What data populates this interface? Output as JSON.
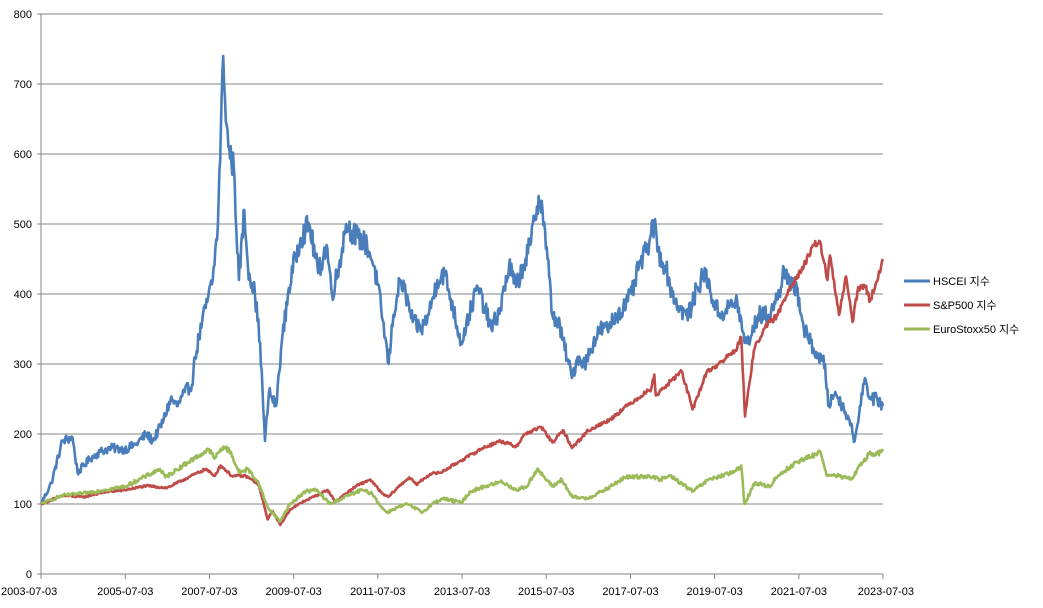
{
  "chart_data": {
    "type": "line",
    "title": "",
    "xlabel": "",
    "ylabel": "",
    "ylim": [
      0,
      800
    ],
    "yticks": [
      0,
      100,
      200,
      300,
      400,
      500,
      600,
      700,
      800
    ],
    "xlim": [
      "2003-07-03",
      "2023-07-03"
    ],
    "xticks": [
      "2003-07-03",
      "2005-07-03",
      "2007-07-03",
      "2009-07-03",
      "2011-07-03",
      "2013-07-03",
      "2015-07-03",
      "2017-07-03",
      "2019-07-03",
      "2021-07-03",
      "2023-07-03"
    ],
    "grid": "horizontal",
    "legend_position": "right",
    "series": [
      {
        "name": "HSCEI 지수",
        "color": "#4a7ebb",
        "points": [
          [
            "2003-07-03",
            100
          ],
          [
            "2003-10-01",
            130
          ],
          [
            "2004-01-05",
            190
          ],
          [
            "2004-04-01",
            195
          ],
          [
            "2004-05-15",
            145
          ],
          [
            "2004-09-01",
            165
          ],
          [
            "2004-12-01",
            175
          ],
          [
            "2005-03-01",
            180
          ],
          [
            "2005-07-01",
            178
          ],
          [
            "2005-10-01",
            185
          ],
          [
            "2006-01-01",
            200
          ],
          [
            "2006-03-01",
            190
          ],
          [
            "2006-06-01",
            220
          ],
          [
            "2006-08-01",
            250
          ],
          [
            "2006-10-01",
            240
          ],
          [
            "2006-12-01",
            260
          ],
          [
            "2007-02-01",
            270
          ],
          [
            "2007-03-01",
            310
          ],
          [
            "2007-05-01",
            360
          ],
          [
            "2007-06-01",
            380
          ],
          [
            "2007-08-01",
            420
          ],
          [
            "2007-09-15",
            500
          ],
          [
            "2007-10-31",
            740
          ],
          [
            "2007-11-15",
            680
          ],
          [
            "2007-12-15",
            610
          ],
          [
            "2008-01-31",
            580
          ],
          [
            "2008-03-15",
            420
          ],
          [
            "2008-05-01",
            520
          ],
          [
            "2008-06-01",
            440
          ],
          [
            "2008-08-01",
            400
          ],
          [
            "2008-09-15",
            330
          ],
          [
            "2008-10-27",
            190
          ],
          [
            "2008-12-01",
            260
          ],
          [
            "2009-02-01",
            240
          ],
          [
            "2009-03-15",
            320
          ],
          [
            "2009-05-15",
            400
          ],
          [
            "2009-07-15",
            450
          ],
          [
            "2009-09-01",
            480
          ],
          [
            "2009-11-15",
            500
          ],
          [
            "2010-02-01",
            430
          ],
          [
            "2010-04-15",
            470
          ],
          [
            "2010-06-01",
            400
          ],
          [
            "2010-08-01",
            440
          ],
          [
            "2010-10-01",
            500
          ],
          [
            "2010-11-15",
            490
          ],
          [
            "2011-01-15",
            480
          ],
          [
            "2011-04-01",
            470
          ],
          [
            "2011-06-01",
            440
          ],
          [
            "2011-08-01",
            380
          ],
          [
            "2011-10-05",
            300
          ],
          [
            "2011-11-15",
            370
          ],
          [
            "2012-01-15",
            420
          ],
          [
            "2012-03-01",
            400
          ],
          [
            "2012-05-01",
            360
          ],
          [
            "2012-07-15",
            350
          ],
          [
            "2012-09-15",
            370
          ],
          [
            "2012-12-01",
            420
          ],
          [
            "2013-02-01",
            430
          ],
          [
            "2013-04-15",
            380
          ],
          [
            "2013-06-25",
            330
          ],
          [
            "2013-09-01",
            370
          ],
          [
            "2013-11-15",
            410
          ],
          [
            "2014-01-15",
            380
          ],
          [
            "2014-03-15",
            350
          ],
          [
            "2014-06-01",
            380
          ],
          [
            "2014-08-15",
            440
          ],
          [
            "2014-10-15",
            410
          ],
          [
            "2014-12-15",
            440
          ],
          [
            "2015-02-15",
            470
          ],
          [
            "2015-04-28",
            540
          ],
          [
            "2015-06-01",
            520
          ],
          [
            "2015-07-15",
            450
          ],
          [
            "2015-08-25",
            370
          ],
          [
            "2015-10-15",
            360
          ],
          [
            "2016-01-15",
            300
          ],
          [
            "2016-02-12",
            280
          ],
          [
            "2016-04-01",
            310
          ],
          [
            "2016-06-01",
            300
          ],
          [
            "2016-08-15",
            330
          ],
          [
            "2016-10-15",
            350
          ],
          [
            "2016-12-15",
            350
          ],
          [
            "2017-03-01",
            370
          ],
          [
            "2017-05-01",
            380
          ],
          [
            "2017-07-15",
            400
          ],
          [
            "2017-09-15",
            440
          ],
          [
            "2017-11-15",
            460
          ],
          [
            "2018-01-26",
            500
          ],
          [
            "2018-03-01",
            460
          ],
          [
            "2018-05-01",
            440
          ],
          [
            "2018-07-01",
            400
          ],
          [
            "2018-09-01",
            380
          ],
          [
            "2018-10-30",
            370
          ],
          [
            "2018-12-15",
            380
          ],
          [
            "2019-02-01",
            410
          ],
          [
            "2019-04-15",
            430
          ],
          [
            "2019-06-01",
            400
          ],
          [
            "2019-08-15",
            370
          ],
          [
            "2019-11-01",
            380
          ],
          [
            "2020-01-15",
            390
          ],
          [
            "2020-03-19",
            330
          ],
          [
            "2020-05-15",
            340
          ],
          [
            "2020-07-15",
            370
          ],
          [
            "2020-10-15",
            370
          ],
          [
            "2021-01-15",
            400
          ],
          [
            "2021-02-17",
            440
          ],
          [
            "2021-04-15",
            410
          ],
          [
            "2021-06-15",
            410
          ],
          [
            "2021-08-15",
            350
          ],
          [
            "2021-10-15",
            330
          ],
          [
            "2021-12-15",
            310
          ],
          [
            "2022-02-15",
            300
          ],
          [
            "2022-03-15",
            240
          ],
          [
            "2022-05-15",
            260
          ],
          [
            "2022-07-15",
            240
          ],
          [
            "2022-09-15",
            220
          ],
          [
            "2022-10-31",
            190
          ],
          [
            "2022-12-15",
            240
          ],
          [
            "2023-01-27",
            280
          ],
          [
            "2023-03-15",
            250
          ],
          [
            "2023-05-15",
            250
          ],
          [
            "2023-07-03",
            240
          ]
        ]
      },
      {
        "name": "S&P500 지수",
        "color": "#be4b48",
        "points": [
          [
            "2003-07-03",
            100
          ],
          [
            "2004-01-01",
            112
          ],
          [
            "2004-07-01",
            110
          ],
          [
            "2005-01-01",
            117
          ],
          [
            "2005-07-01",
            120
          ],
          [
            "2006-01-01",
            126
          ],
          [
            "2006-07-01",
            123
          ],
          [
            "2007-01-01",
            138
          ],
          [
            "2007-06-01",
            150
          ],
          [
            "2007-08-15",
            140
          ],
          [
            "2007-10-09",
            155
          ],
          [
            "2008-01-15",
            140
          ],
          [
            "2008-05-15",
            140
          ],
          [
            "2008-09-01",
            128
          ],
          [
            "2008-11-20",
            78
          ],
          [
            "2009-01-01",
            90
          ],
          [
            "2009-03-09",
            70
          ],
          [
            "2009-06-01",
            92
          ],
          [
            "2009-10-01",
            104
          ],
          [
            "2010-01-01",
            111
          ],
          [
            "2010-04-23",
            120
          ],
          [
            "2010-07-01",
            103
          ],
          [
            "2010-10-01",
            115
          ],
          [
            "2011-01-01",
            126
          ],
          [
            "2011-04-29",
            135
          ],
          [
            "2011-08-08",
            115
          ],
          [
            "2011-10-03",
            110
          ],
          [
            "2012-01-01",
            125
          ],
          [
            "2012-04-01",
            138
          ],
          [
            "2012-06-01",
            128
          ],
          [
            "2012-10-01",
            143
          ],
          [
            "2013-01-01",
            145
          ],
          [
            "2013-06-01",
            160
          ],
          [
            "2013-12-31",
            180
          ],
          [
            "2014-06-01",
            190
          ],
          [
            "2014-10-15",
            182
          ],
          [
            "2014-12-31",
            200
          ],
          [
            "2015-05-21",
            210
          ],
          [
            "2015-08-25",
            188
          ],
          [
            "2015-12-01",
            205
          ],
          [
            "2016-02-11",
            180
          ],
          [
            "2016-07-01",
            205
          ],
          [
            "2016-12-31",
            220
          ],
          [
            "2017-06-01",
            240
          ],
          [
            "2017-12-31",
            265
          ],
          [
            "2018-01-26",
            285
          ],
          [
            "2018-02-08",
            255
          ],
          [
            "2018-09-20",
            290
          ],
          [
            "2018-12-24",
            235
          ],
          [
            "2019-04-30",
            290
          ],
          [
            "2019-07-26",
            298
          ],
          [
            "2019-12-31",
            320
          ],
          [
            "2020-02-19",
            338
          ],
          [
            "2020-03-23",
            225
          ],
          [
            "2020-06-08",
            320
          ],
          [
            "2020-09-01",
            350
          ],
          [
            "2020-12-31",
            370
          ],
          [
            "2021-04-15",
            410
          ],
          [
            "2021-08-15",
            440
          ],
          [
            "2021-11-15",
            470
          ],
          [
            "2022-01-03",
            475
          ],
          [
            "2022-03-08",
            420
          ],
          [
            "2022-03-29",
            455
          ],
          [
            "2022-06-16",
            370
          ],
          [
            "2022-08-16",
            425
          ],
          [
            "2022-10-12",
            360
          ],
          [
            "2022-12-01",
            410
          ],
          [
            "2023-02-01",
            410
          ],
          [
            "2023-03-13",
            390
          ],
          [
            "2023-05-01",
            415
          ],
          [
            "2023-07-03",
            450
          ]
        ]
      },
      {
        "name": "EuroStoxx50 지수",
        "color": "#9bbb59",
        "points": [
          [
            "2003-07-03",
            100
          ],
          [
            "2004-01-01",
            112
          ],
          [
            "2004-07-01",
            115
          ],
          [
            "2005-01-01",
            120
          ],
          [
            "2005-07-01",
            125
          ],
          [
            "2006-01-01",
            140
          ],
          [
            "2006-05-01",
            150
          ],
          [
            "2006-06-15",
            138
          ],
          [
            "2007-01-01",
            160
          ],
          [
            "2007-07-01",
            178
          ],
          [
            "2007-08-15",
            165
          ],
          [
            "2007-11-01",
            182
          ],
          [
            "2008-01-01",
            175
          ],
          [
            "2008-03-15",
            145
          ],
          [
            "2008-06-01",
            150
          ],
          [
            "2008-09-01",
            130
          ],
          [
            "2008-11-20",
            95
          ],
          [
            "2009-03-09",
            75
          ],
          [
            "2009-06-01",
            100
          ],
          [
            "2009-10-15",
            118
          ],
          [
            "2010-01-15",
            120
          ],
          [
            "2010-05-15",
            100
          ],
          [
            "2010-10-15",
            112
          ],
          [
            "2011-02-15",
            120
          ],
          [
            "2011-05-15",
            115
          ],
          [
            "2011-08-15",
            93
          ],
          [
            "2011-09-23",
            88
          ],
          [
            "2011-12-15",
            95
          ],
          [
            "2012-03-15",
            100
          ],
          [
            "2012-07-24",
            88
          ],
          [
            "2012-10-15",
            100
          ],
          [
            "2013-01-15",
            108
          ],
          [
            "2013-06-25",
            102
          ],
          [
            "2013-09-15",
            118
          ],
          [
            "2014-01-15",
            125
          ],
          [
            "2014-06-15",
            132
          ],
          [
            "2014-10-15",
            120
          ],
          [
            "2015-01-15",
            125
          ],
          [
            "2015-04-15",
            150
          ],
          [
            "2015-08-25",
            125
          ],
          [
            "2015-11-15",
            135
          ],
          [
            "2016-02-12",
            110
          ],
          [
            "2016-06-27",
            108
          ],
          [
            "2016-12-15",
            122
          ],
          [
            "2017-05-15",
            138
          ],
          [
            "2017-12-15",
            140
          ],
          [
            "2018-03-15",
            135
          ],
          [
            "2018-06-15",
            140
          ],
          [
            "2018-12-27",
            118
          ],
          [
            "2019-05-15",
            135
          ],
          [
            "2019-12-15",
            145
          ],
          [
            "2020-02-19",
            155
          ],
          [
            "2020-03-18",
            100
          ],
          [
            "2020-06-15",
            130
          ],
          [
            "2020-10-30",
            125
          ],
          [
            "2020-12-15",
            138
          ],
          [
            "2021-06-15",
            160
          ],
          [
            "2021-11-15",
            170
          ],
          [
            "2022-01-05",
            175
          ],
          [
            "2022-03-07",
            140
          ],
          [
            "2022-06-15",
            140
          ],
          [
            "2022-09-29",
            135
          ],
          [
            "2022-12-15",
            155
          ],
          [
            "2023-03-06",
            172
          ],
          [
            "2023-05-15",
            172
          ],
          [
            "2023-07-03",
            175
          ]
        ]
      }
    ]
  }
}
